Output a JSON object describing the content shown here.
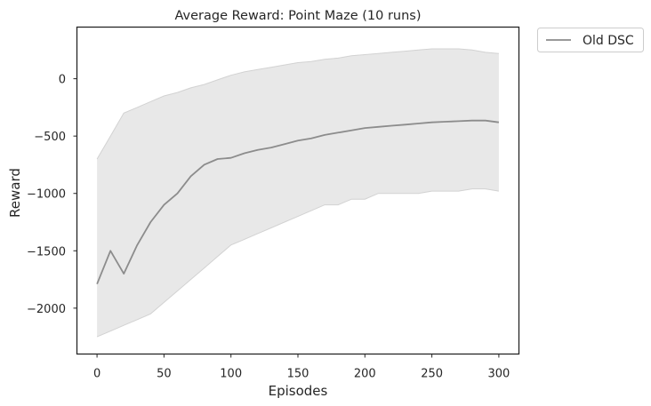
{
  "chart_data": {
    "type": "line",
    "title": "Average Reward: Point Maze (10 runs)",
    "xlabel": "Episodes",
    "ylabel": "Reward",
    "xlim": [
      -15,
      315
    ],
    "ylim": [
      -2400,
      450
    ],
    "xticks": [
      0,
      50,
      100,
      150,
      200,
      250,
      300
    ],
    "yticks": [
      0,
      -500,
      -1000,
      -1500,
      -2000
    ],
    "grid": false,
    "legend_position": "outside-top-right",
    "colors": {
      "line": "#8c8c8c",
      "band": "#e8e8e8",
      "band_edge": "#d2d2d2"
    },
    "series": [
      {
        "name": "Old DSC",
        "x": [
          0,
          10,
          20,
          30,
          40,
          50,
          60,
          70,
          80,
          90,
          100,
          110,
          120,
          130,
          140,
          150,
          160,
          170,
          180,
          190,
          200,
          210,
          220,
          230,
          240,
          250,
          260,
          270,
          280,
          290,
          300
        ],
        "mean": [
          -1790,
          -1500,
          -1700,
          -1450,
          -1250,
          -1100,
          -1000,
          -850,
          -750,
          -700,
          -690,
          -650,
          -620,
          -600,
          -570,
          -540,
          -520,
          -490,
          -470,
          -450,
          -430,
          -420,
          -410,
          -400,
          -390,
          -380,
          -375,
          -370,
          -365,
          -365,
          -380
        ],
        "upper": [
          -700,
          -500,
          -300,
          -250,
          -200,
          -150,
          -120,
          -80,
          -50,
          -10,
          30,
          60,
          80,
          100,
          120,
          140,
          150,
          170,
          180,
          200,
          210,
          220,
          230,
          240,
          250,
          260,
          260,
          260,
          250,
          230,
          220
        ],
        "lower": [
          -2250,
          -2200,
          -2150,
          -2100,
          -2050,
          -1950,
          -1850,
          -1750,
          -1650,
          -1550,
          -1450,
          -1400,
          -1350,
          -1300,
          -1250,
          -1200,
          -1150,
          -1100,
          -1100,
          -1050,
          -1050,
          -1000,
          -1000,
          -1000,
          -1000,
          -980,
          -980,
          -980,
          -960,
          -960,
          -980
        ]
      }
    ]
  }
}
